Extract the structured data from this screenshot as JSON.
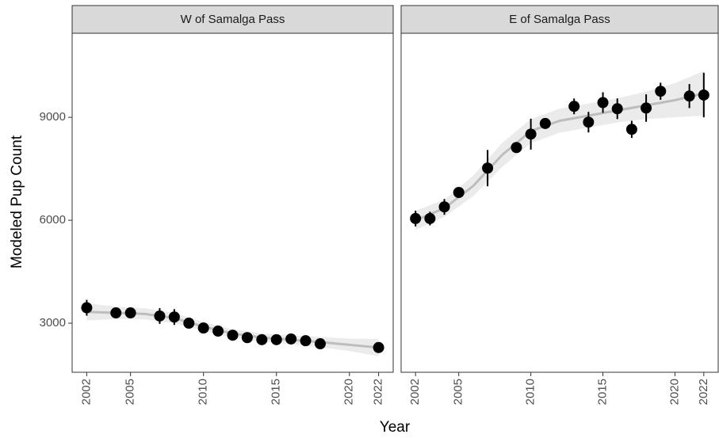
{
  "chart_data": [
    {
      "type": "scatter",
      "title": "W of Samalga Pass",
      "x_label": "Year",
      "y_label": "Modeled Pup Count",
      "x": [
        2002,
        2004,
        2005,
        2007,
        2008,
        2009,
        2010,
        2011,
        2012,
        2013,
        2014,
        2015,
        2016,
        2017,
        2018,
        2022
      ],
      "values": [
        3450,
        3300,
        3300,
        3210,
        3180,
        3000,
        2860,
        2770,
        2650,
        2580,
        2520,
        2520,
        2540,
        2490,
        2400,
        2290
      ],
      "errors": [
        230,
        150,
        130,
        230,
        230,
        100,
        90,
        80,
        80,
        70,
        70,
        70,
        70,
        70,
        70,
        60
      ],
      "color": "#000000",
      "fit": {
        "color": "#bdbdbd",
        "band_color": "#ebebeb",
        "x": [
          2002,
          2004,
          2006,
          2008,
          2010,
          2012,
          2014,
          2016,
          2018,
          2020,
          2022
        ],
        "values": [
          3330,
          3300,
          3270,
          3150,
          2900,
          2700,
          2580,
          2520,
          2450,
          2370,
          2290
        ],
        "lower": [
          3080,
          3120,
          3110,
          3000,
          2770,
          2580,
          2460,
          2390,
          2300,
          2190,
          2040
        ],
        "upper": [
          3580,
          3480,
          3430,
          3300,
          3030,
          2820,
          2700,
          2650,
          2600,
          2550,
          2540
        ]
      },
      "xlim": [
        2001,
        2023
      ],
      "ylim": [
        1570,
        11450
      ],
      "xticks": [
        2002,
        2005,
        2010,
        2015,
        2020,
        2022
      ],
      "yticks": [
        3000,
        6000,
        9000
      ]
    },
    {
      "type": "scatter",
      "title": "E of Samalga Pass",
      "x": [
        2002,
        2003,
        2004,
        2005,
        2007,
        2009,
        2010,
        2011,
        2013,
        2014,
        2015,
        2016,
        2017,
        2018,
        2019,
        2021,
        2022
      ],
      "values": [
        6050,
        6050,
        6390,
        6810,
        7520,
        8120,
        8510,
        8820,
        9320,
        8860,
        9430,
        9250,
        8650,
        9270,
        9760,
        9620,
        9650
      ],
      "errors": [
        230,
        200,
        230,
        120,
        530,
        120,
        450,
        120,
        230,
        300,
        300,
        300,
        250,
        400,
        250,
        350,
        650
      ],
      "color": "#000000",
      "fit": {
        "color": "#bdbdbd",
        "band_color": "#ebebeb",
        "x": [
          2002,
          2004,
          2006,
          2008,
          2010,
          2012,
          2014,
          2016,
          2018,
          2020,
          2022
        ],
        "values": [
          6000,
          6350,
          7000,
          7900,
          8600,
          8900,
          9050,
          9200,
          9350,
          9500,
          9700
        ],
        "lower": [
          5720,
          6100,
          6700,
          7550,
          8250,
          8550,
          8700,
          8850,
          8950,
          9000,
          9050
        ],
        "upper": [
          6280,
          6600,
          7300,
          8250,
          8950,
          9250,
          9400,
          9550,
          9750,
          10000,
          10350
        ]
      },
      "xlim": [
        2001,
        2023
      ],
      "ylim": [
        1570,
        11450
      ],
      "xticks": [
        2002,
        2005,
        2010,
        2015,
        2020,
        2022
      ]
    }
  ]
}
